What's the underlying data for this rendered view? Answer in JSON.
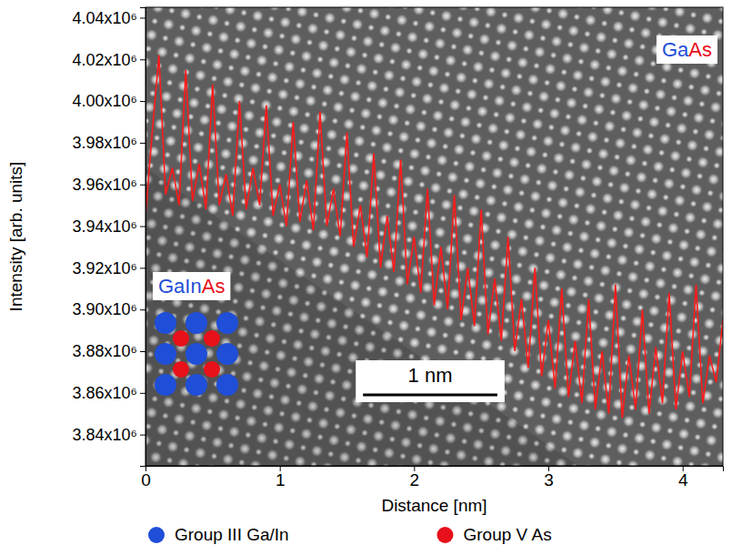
{
  "chart_data": {
    "type": "line",
    "x_label": "Distance [nm]",
    "y_label": "Intensity [arb. units]",
    "x": [
      0,
      0.05,
      0.1,
      0.15,
      0.2,
      0.25,
      0.3,
      0.35,
      0.4,
      0.45,
      0.5,
      0.55,
      0.6,
      0.65,
      0.7,
      0.75,
      0.8,
      0.85,
      0.9,
      0.95,
      1,
      1.05,
      1.1,
      1.15,
      1.2,
      1.25,
      1.3,
      1.35,
      1.4,
      1.45,
      1.5,
      1.55,
      1.6,
      1.65,
      1.7,
      1.75,
      1.8,
      1.85,
      1.9,
      1.95,
      2,
      2.05,
      2.1,
      2.15,
      2.2,
      2.25,
      2.3,
      2.35,
      2.4,
      2.45,
      2.5,
      2.55,
      2.6,
      2.65,
      2.7,
      2.75,
      2.8,
      2.85,
      2.9,
      2.95,
      3,
      3.05,
      3.1,
      3.15,
      3.2,
      3.25,
      3.3,
      3.35,
      3.4,
      3.45,
      3.5,
      3.55,
      3.6,
      3.65,
      3.7,
      3.75,
      3.8,
      3.85,
      3.9,
      3.95,
      4,
      4.05,
      4.1,
      4.15,
      4.2,
      4.25,
      4.3
    ],
    "values": [
      3945000,
      3985000,
      4022000,
      3955000,
      3968000,
      3950000,
      4015000,
      3952000,
      3970000,
      3948000,
      4008000,
      3950000,
      3965000,
      3945000,
      4000000,
      3948000,
      3968000,
      3950000,
      3998000,
      3945000,
      3960000,
      3940000,
      3990000,
      3942000,
      3962000,
      3938000,
      3995000,
      3940000,
      3958000,
      3935000,
      3985000,
      3930000,
      3950000,
      3925000,
      3975000,
      3920000,
      3945000,
      3918000,
      3972000,
      3912000,
      3935000,
      3908000,
      3958000,
      3902000,
      3930000,
      3900000,
      3955000,
      3895000,
      3920000,
      3892000,
      3948000,
      3888000,
      3915000,
      3885000,
      3935000,
      3880000,
      3905000,
      3872000,
      3920000,
      3868000,
      3895000,
      3862000,
      3910000,
      3858000,
      3885000,
      3855000,
      3905000,
      3852000,
      3880000,
      3850000,
      3912000,
      3848000,
      3878000,
      3852000,
      3900000,
      3850000,
      3882000,
      3855000,
      3908000,
      3852000,
      3880000,
      3858000,
      3912000,
      3855000,
      3878000,
      3865000,
      3895000
    ],
    "color": "#ff1a1a",
    "line_style": "solid",
    "xlim": [
      0,
      4.3
    ],
    "xticks": [
      0,
      1,
      2,
      3,
      4
    ],
    "ylim": [
      3825000,
      4045000
    ],
    "yticks": [
      {
        "value": 3840000,
        "label": "3.84x10⁶"
      },
      {
        "value": 3860000,
        "label": "3.86x10⁶"
      },
      {
        "value": 3880000,
        "label": "3.88x10⁶"
      },
      {
        "value": 3900000,
        "label": "3.90x10⁶"
      },
      {
        "value": 3920000,
        "label": "3.92x10⁶"
      },
      {
        "value": 3940000,
        "label": "3.94x10⁶"
      },
      {
        "value": 3960000,
        "label": "3.96x10⁶"
      },
      {
        "value": 3980000,
        "label": "3.98x10⁶"
      },
      {
        "value": 4000000,
        "label": "4.00x10⁶"
      },
      {
        "value": 4020000,
        "label": "4.02x10⁶"
      },
      {
        "value": 4040000,
        "label": "4.04x10⁶"
      }
    ],
    "grid": false,
    "legend": "bottom",
    "annotations": [
      {
        "parts": [
          {
            "text": "Ga",
            "color": "#1f4ed8"
          },
          {
            "text": "As",
            "color": "#e8101a"
          }
        ]
      },
      {
        "parts": [
          {
            "text": "GaIn",
            "color": "#1f4ed8"
          },
          {
            "text": "As",
            "color": "#e8101a"
          }
        ]
      },
      {
        "text": "1 nm",
        "scale_bar": 1
      },
      {
        "text": "Group III Ga/In",
        "color": "#1f4ed8",
        "marker": "circle"
      },
      {
        "text": "Group V As",
        "color": "#e8101a",
        "marker": "circle"
      }
    ]
  }
}
